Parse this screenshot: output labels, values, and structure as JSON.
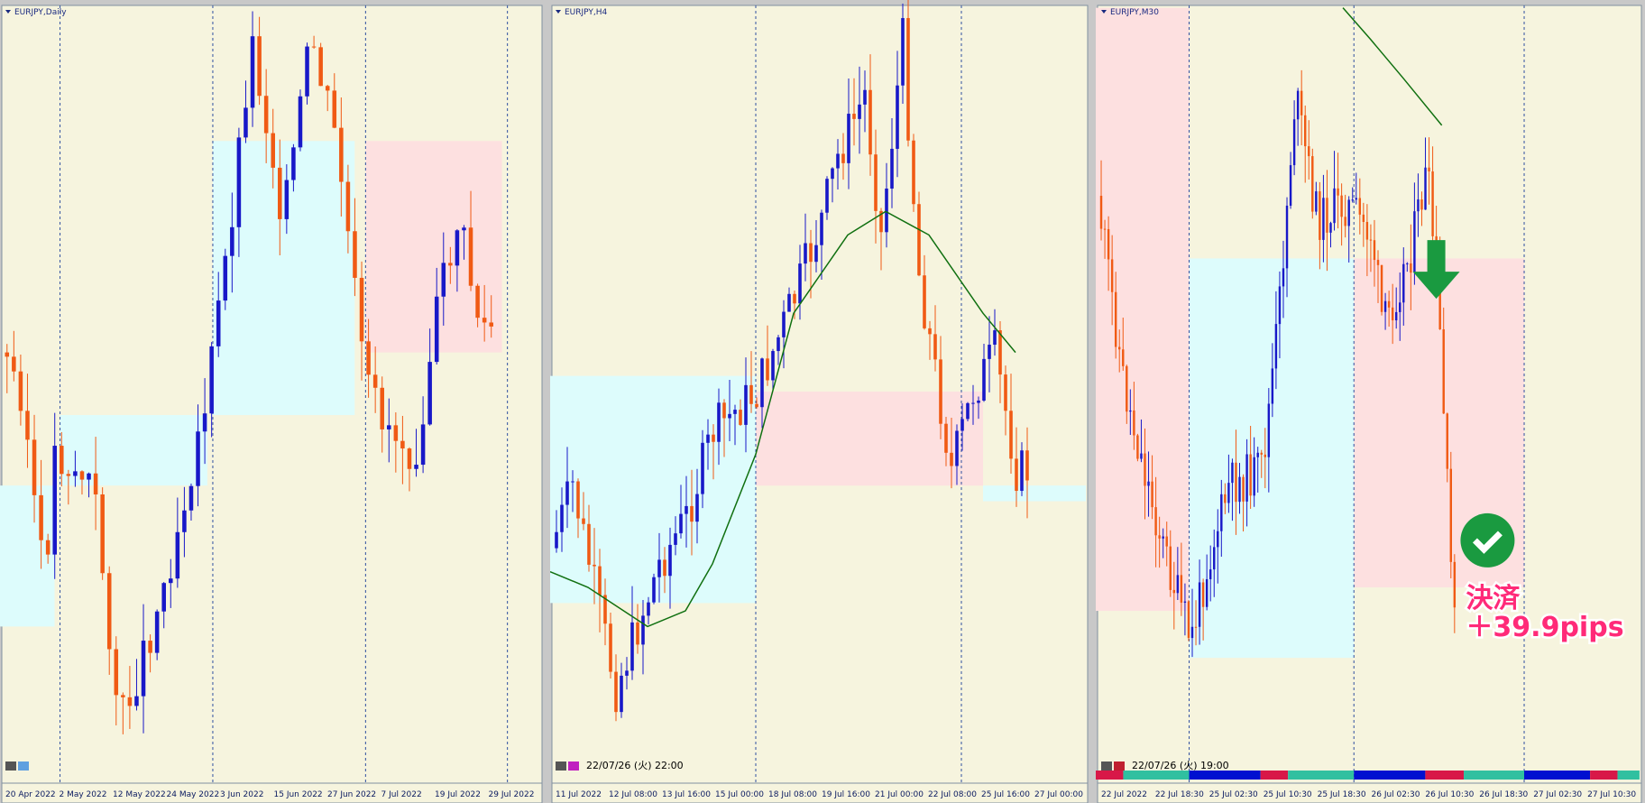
{
  "panels": [
    {
      "title": "EURJPY,Daily",
      "x_labels": [
        "20 Apr 2022",
        "2 May 2022",
        "12 May 2022",
        "24 May 2022",
        "3 Jun 2022",
        "15 Jun 2022",
        "27 Jun 2022",
        "7 Jul 2022",
        "19 Jul 2022",
        "29 Jul 2022"
      ]
    },
    {
      "title": "EURJPY,H4",
      "timestamp": "22/07/26 (火) 22:00",
      "x_labels": [
        "11 Jul 2022",
        "12 Jul 08:00",
        "13 Jul 16:00",
        "15 Jul 00:00",
        "18 Jul 08:00",
        "19 Jul 16:00",
        "21 Jul 00:00",
        "22 Jul 08:00",
        "25 Jul 16:00",
        "27 Jul 00:00"
      ]
    },
    {
      "title": "EURJPY,M30",
      "timestamp": "22/07/26 (火) 19:00",
      "x_labels": [
        "22 Jul 2022",
        "22 Jul 18:30",
        "25 Jul 02:30",
        "25 Jul 10:30",
        "25 Jul 18:30",
        "26 Jul 02:30",
        "26 Jul 10:30",
        "26 Jul 18:30",
        "27 Jul 02:30",
        "27 Jul 10:30"
      ],
      "annotation": [
        "決済",
        "＋39.9pips"
      ]
    }
  ]
}
